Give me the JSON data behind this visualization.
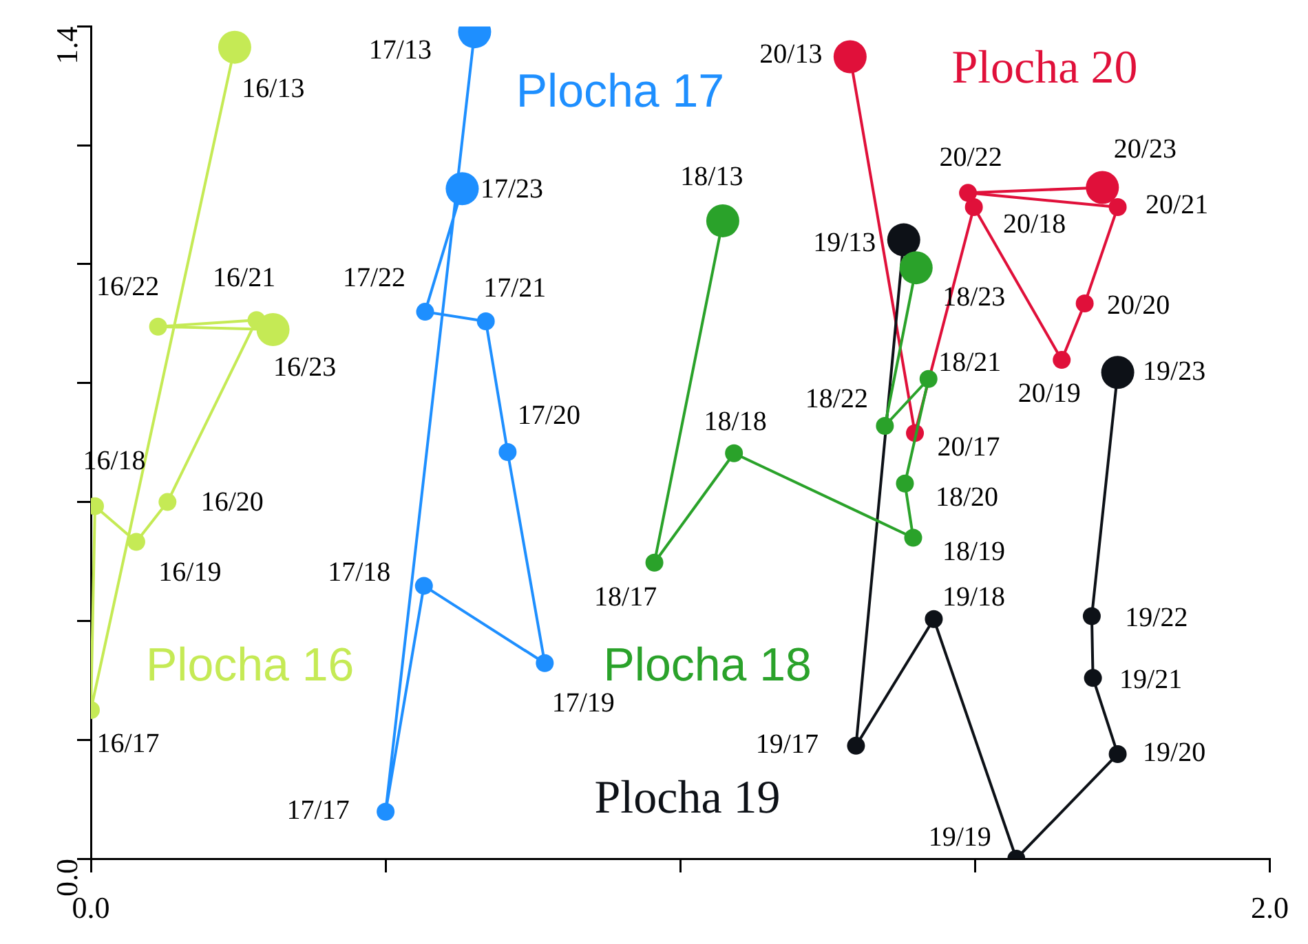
{
  "chart_data": {
    "type": "line",
    "marker": "circle",
    "line_style": "solid",
    "xlim": [
      0,
      2.0
    ],
    "ylim": [
      0,
      1.4
    ],
    "xticks": [
      {
        "value": 0,
        "label": "0.0"
      },
      {
        "value": 0.5,
        "label": null
      },
      {
        "value": 1.0,
        "label": null
      },
      {
        "value": 1.5,
        "label": null
      },
      {
        "value": 2.0,
        "label": "2.0"
      }
    ],
    "yticks": [
      {
        "value": 0,
        "label": "0.0"
      },
      {
        "value": 0.2,
        "label": null
      },
      {
        "value": 0.4,
        "label": null
      },
      {
        "value": 0.6,
        "label": null
      },
      {
        "value": 0.8,
        "label": null
      },
      {
        "value": 1.0,
        "label": null
      },
      {
        "value": 1.2,
        "label": null
      },
      {
        "value": 1.4,
        "label": "1.4"
      }
    ],
    "series": [
      {
        "name": "Plocha 16",
        "color": "#c5ea55",
        "x": [
          0.244,
          0.0,
          0.007,
          0.077,
          0.13,
          0.281,
          0.114,
          0.309
        ],
        "values": [
          1.365,
          0.25,
          0.593,
          0.533,
          0.6,
          0.906,
          0.895,
          0.89
        ],
        "value_labels": [
          "16/13",
          "16/17",
          "16/18",
          "16/19",
          "16/20",
          "16/21",
          "16/22",
          "16/23"
        ]
      },
      {
        "name": "Plocha 17",
        "color": "#1e8fff",
        "x": [
          0.651,
          0.5,
          0.565,
          0.77,
          0.707,
          0.67,
          0.567,
          0.63
        ],
        "values": [
          1.391,
          0.079,
          0.459,
          0.329,
          0.684,
          0.904,
          0.92,
          1.127
        ],
        "value_labels": [
          "17/13",
          "17/17",
          "17/18",
          "17/19",
          "17/20",
          "17/21",
          "17/22",
          "17/23"
        ]
      },
      {
        "name": "Plocha 18",
        "color": "#2aa22a",
        "x": [
          1.072,
          0.956,
          1.091,
          1.395,
          1.381,
          1.421,
          1.347,
          1.4
        ],
        "values": [
          1.073,
          0.498,
          0.682,
          0.54,
          0.631,
          0.807,
          0.728,
          0.994
        ],
        "value_labels": [
          "18/13",
          "18/17",
          "18/18",
          "18/19",
          "18/20",
          "18/21",
          "18/22",
          "18/23"
        ]
      },
      {
        "name": "Plocha 19",
        "color": "#0d1117",
        "x": [
          1.379,
          1.298,
          1.43,
          1.57,
          1.742,
          1.7,
          1.698,
          1.742
        ],
        "values": [
          1.041,
          0.19,
          0.403,
          0.0,
          0.176,
          0.304,
          0.408,
          0.818
        ],
        "value_labels": [
          "19/13",
          "19/17",
          "19/18",
          "19/19",
          "19/20",
          "19/21",
          "19/22",
          "19/23"
        ]
      },
      {
        "name": "Plocha 20",
        "color": "#e0103a",
        "x": [
          1.288,
          1.398,
          1.498,
          1.647,
          1.686,
          1.742,
          1.488,
          1.716
        ],
        "values": [
          1.349,
          0.716,
          1.096,
          0.839,
          0.934,
          1.096,
          1.12,
          1.129
        ],
        "value_labels": [
          "20/13",
          "20/17",
          "20/18",
          "20/19",
          "20/20",
          "20/21",
          "20/22",
          "20/23"
        ]
      }
    ]
  }
}
